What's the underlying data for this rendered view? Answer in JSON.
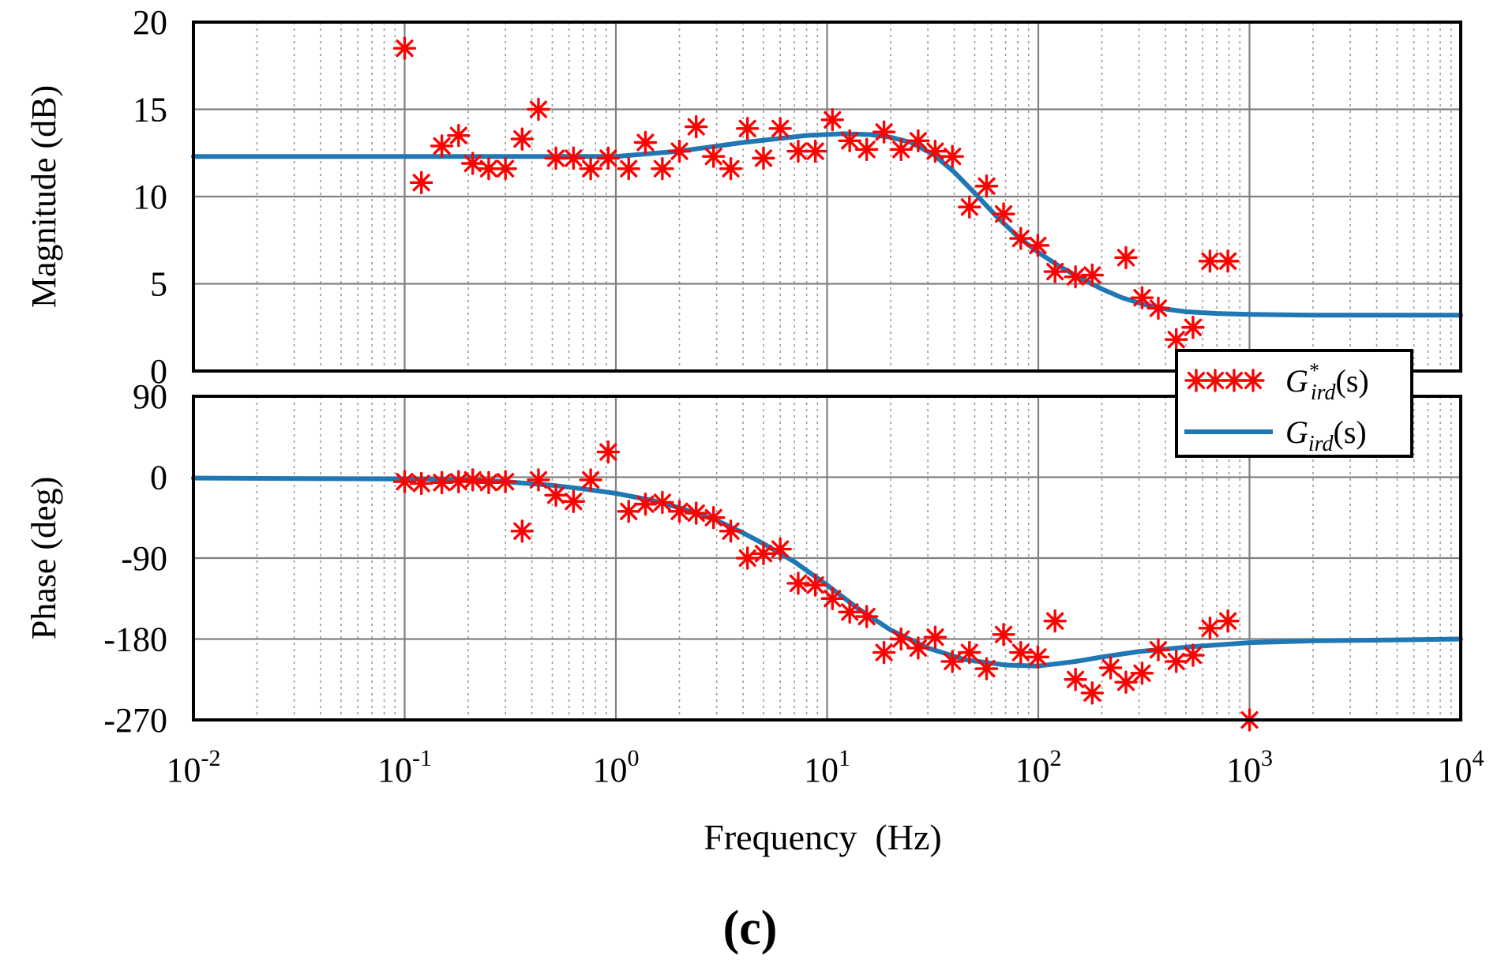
{
  "chart_data": [
    {
      "type": "line",
      "panel": "magnitude",
      "ylabel": "Magnitude (dB)",
      "xscale": "log",
      "xlim": [
        0.01,
        10000
      ],
      "ylim": [
        0,
        20
      ],
      "yticks": [
        "20",
        "15",
        "10",
        "5",
        "0"
      ],
      "grid": true,
      "series": [
        {
          "name": "G*ird(s)",
          "kind": "measured",
          "x": [
            0.1,
            0.12,
            0.15,
            0.18,
            0.21,
            0.25,
            0.3,
            0.36,
            0.43,
            0.52,
            0.63,
            0.76,
            0.92,
            1.15,
            1.38,
            1.66,
            2.0,
            2.4,
            2.9,
            3.5,
            4.2,
            5.0,
            6.0,
            7.3,
            8.8,
            10.6,
            12.8,
            15.4,
            18.6,
            22.4,
            27.0,
            32.5,
            39.2,
            47.2,
            56.9,
            68.5,
            82.6,
            99.5,
            120,
            150,
            180,
            260,
            310,
            370,
            450,
            540,
            650,
            790
          ],
          "y": [
            18.5,
            10.8,
            12.9,
            13.5,
            11.9,
            11.6,
            11.6,
            13.3,
            15.0,
            12.2,
            12.2,
            11.6,
            12.2,
            11.6,
            13.1,
            11.6,
            12.6,
            14.0,
            12.3,
            11.6,
            13.9,
            12.2,
            13.9,
            12.6,
            12.6,
            14.4,
            13.2,
            12.7,
            13.7,
            12.7,
            13.2,
            12.6,
            12.3,
            9.4,
            10.6,
            9.0,
            7.6,
            7.2,
            5.7,
            5.4,
            5.5,
            6.5,
            4.2,
            3.6,
            1.8,
            2.5,
            6.3,
            6.3
          ]
        },
        {
          "name": "Gird(s)",
          "kind": "model",
          "x": [
            0.01,
            0.1,
            0.3,
            1,
            2,
            4,
            8,
            12,
            16,
            20,
            25,
            32,
            40,
            50,
            63,
            80,
            100,
            126,
            160,
            200,
            250,
            320,
            400,
            500,
            700,
            1000,
            2000,
            5000,
            10000
          ],
          "y": [
            12.3,
            12.3,
            12.3,
            12.3,
            12.6,
            13.1,
            13.5,
            13.6,
            13.55,
            13.4,
            13.1,
            12.4,
            11.4,
            10.2,
            8.9,
            7.7,
            6.8,
            6.0,
            5.3,
            4.7,
            4.2,
            3.8,
            3.55,
            3.4,
            3.3,
            3.25,
            3.2,
            3.2,
            3.2
          ]
        }
      ]
    },
    {
      "type": "line",
      "panel": "phase",
      "ylabel": "Phase (deg)",
      "xlabel": "Frequency  (Hz)",
      "xscale": "log",
      "xlim": [
        0.01,
        10000
      ],
      "ylim": [
        -270,
        90
      ],
      "yticks": [
        "90",
        "0",
        "-90",
        "-180",
        "-270"
      ],
      "xticks": [
        {
          "base": "10",
          "exp": "-2"
        },
        {
          "base": "10",
          "exp": "-1"
        },
        {
          "base": "10",
          "exp": "0"
        },
        {
          "base": "10",
          "exp": "1"
        },
        {
          "base": "10",
          "exp": "2"
        },
        {
          "base": "10",
          "exp": "3"
        },
        {
          "base": "10",
          "exp": "4"
        }
      ],
      "grid": true,
      "series": [
        {
          "name": "G*ird(s)",
          "kind": "measured",
          "x": [
            0.1,
            0.12,
            0.15,
            0.18,
            0.21,
            0.25,
            0.3,
            0.36,
            0.43,
            0.52,
            0.63,
            0.76,
            0.92,
            1.15,
            1.38,
            1.66,
            2.0,
            2.4,
            2.9,
            3.5,
            4.2,
            5.0,
            6.0,
            7.3,
            8.8,
            10.6,
            12.8,
            15.4,
            18.6,
            22.4,
            27.0,
            32.5,
            39.2,
            47.2,
            56.9,
            68.5,
            82.6,
            99.5,
            120,
            150,
            180,
            220,
            260,
            310,
            370,
            450,
            540,
            650,
            790,
            1000
          ],
          "y": [
            -5,
            -7,
            -6,
            -5,
            -3,
            -6,
            -5,
            -60,
            -3,
            -20,
            -27,
            -3,
            28,
            -38,
            -30,
            -28,
            -38,
            -40,
            -45,
            -60,
            -90,
            -85,
            -80,
            -118,
            -120,
            -135,
            -150,
            -155,
            -195,
            -180,
            -190,
            -178,
            -205,
            -195,
            -213,
            -175,
            -195,
            -200,
            -160,
            -225,
            -240,
            -212,
            -228,
            -218,
            -192,
            -205,
            -198,
            -168,
            -160,
            -270
          ]
        },
        {
          "name": "Gird(s)",
          "kind": "model",
          "x": [
            0.01,
            0.1,
            0.2,
            0.3,
            0.5,
            0.7,
            1,
            1.5,
            2,
            3,
            4,
            5,
            7,
            10,
            14,
            20,
            30,
            45,
            70,
            100,
            150,
            200,
            300,
            500,
            1000,
            2000,
            5000,
            10000
          ],
          "y": [
            -1,
            -2,
            -3,
            -5,
            -9,
            -13,
            -18,
            -26,
            -34,
            -48,
            -62,
            -74,
            -94,
            -120,
            -146,
            -170,
            -190,
            -203,
            -209,
            -210,
            -205,
            -200,
            -194,
            -189,
            -184,
            -182,
            -181,
            -180
          ]
        }
      ]
    }
  ],
  "legend": {
    "placement": "between panels, right",
    "entries": [
      {
        "base": "G",
        "sup": "*",
        "sub": "ird",
        "arg": "(s)",
        "marker": "asterisk"
      },
      {
        "base": "G",
        "sup": "",
        "sub": "ird",
        "arg": "(s)",
        "marker": "line"
      }
    ]
  },
  "caption": "(c)",
  "colors": {
    "measured": "#ff0000",
    "model": "#1f77b4",
    "grid": "#808080"
  }
}
